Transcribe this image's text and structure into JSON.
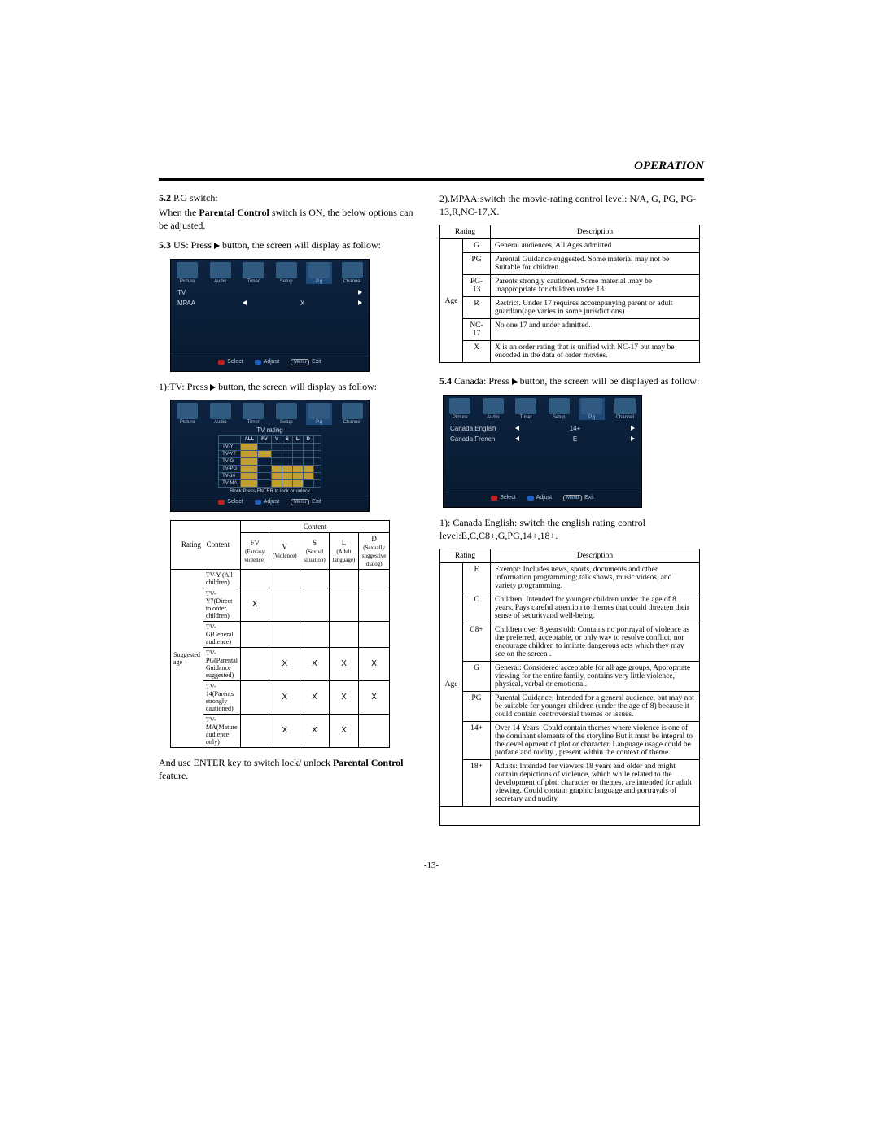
{
  "page": {
    "header": "OPERATION",
    "page_number": "-13-"
  },
  "left": {
    "s52_head": "5.2",
    "s52_label": "P.G  switch:",
    "s52_body1": "When  the ",
    "s52_body1b": "Parental Control",
    "s52_body1c": " switch is ON, the below options can  be adjusted.",
    "s53_head": "5.3",
    "s53_label": "US: Press",
    "s53_rest": "button, the screen will  display as follow:",
    "p1_intro": "1):TV: Press",
    "p1_rest": "button, the screen will  display as follow:",
    "after_table_a": "And use ENTER key to switch lock/ unlock ",
    "after_table_b": "Parental Control",
    "after_table_c": " feature.",
    "osd_tabs": [
      "Picture",
      "Audio",
      "Timer",
      "Setup",
      "P.g",
      "Channel"
    ],
    "osd1_rows": [
      {
        "label": "TV",
        "val": ""
      },
      {
        "label": "MPAA",
        "val": "X"
      }
    ],
    "osd_foot": {
      "select": "Select",
      "adjust": "Adjust",
      "menu": "Menu",
      "exit": "Exit"
    },
    "tvgrid": {
      "title": "TV rating",
      "cols": [
        "ALL",
        "FV",
        "V",
        "S",
        "L",
        "D"
      ],
      "rows": [
        "TV-Y",
        "TV-Y7",
        "TV-G",
        "TV-PG",
        "TV-14",
        "TV-MA"
      ],
      "locks": [
        [
          1,
          0,
          0,
          0,
          0,
          0
        ],
        [
          1,
          1,
          0,
          0,
          0,
          0
        ],
        [
          1,
          0,
          0,
          0,
          0,
          0
        ],
        [
          1,
          0,
          1,
          1,
          1,
          1
        ],
        [
          1,
          0,
          1,
          1,
          1,
          1
        ],
        [
          1,
          0,
          1,
          1,
          1,
          0
        ]
      ],
      "sub": "Block        Press ENTER to lock or unlock"
    },
    "content_table": {
      "h_group": "Content",
      "h_left": [
        "Rating",
        "Content"
      ],
      "h_cols": [
        {
          "k": "FV",
          "s": "(Fantasy violence)"
        },
        {
          "k": "V",
          "s": "(Violence)"
        },
        {
          "k": "S",
          "s": "(Sexual situation)"
        },
        {
          "k": "L",
          "s": "(Adult language)"
        },
        {
          "k": "D",
          "s": "(Sexually suggestive dialog)"
        }
      ],
      "side": "Suggested age",
      "rows": [
        {
          "r": "TV-Y (All children)",
          "x": [
            0,
            0,
            0,
            0,
            0
          ]
        },
        {
          "r": "TV-Y7(Direct to order children)",
          "x": [
            1,
            0,
            0,
            0,
            0
          ]
        },
        {
          "r": "TV-G(General audience)",
          "x": [
            0,
            0,
            0,
            0,
            0
          ]
        },
        {
          "r": "TV-PG(Parental Guidance suggested)",
          "x": [
            0,
            1,
            1,
            1,
            1
          ]
        },
        {
          "r": "TV-14(Parents strongly cautioned)",
          "x": [
            0,
            1,
            1,
            1,
            1
          ]
        },
        {
          "r": "TV-MA(Mature audience only)",
          "x": [
            0,
            1,
            1,
            1,
            0
          ]
        }
      ]
    }
  },
  "right": {
    "p2_intro": "2).MPAA:switch the movie-rating control level: N/A, G, PG, PG-13,R,NC-17,X.",
    "mpaa_table": {
      "h": [
        "Rating",
        "Description"
      ],
      "side": "Age",
      "rows": [
        {
          "r": "G",
          "d": "General audiences, All Ages admitted"
        },
        {
          "r": "PG",
          "d": "Parental Guidance suggested. Some material may not be Suitable for children."
        },
        {
          "r": "PG-13",
          "d": "Parents strongly cautioned. Some material .may be Inappropriate for children under 13."
        },
        {
          "r": "R",
          "d": "Restrict. Under 17 requires accompanying parent or adult guardian(age varies in some jurisdictions)"
        },
        {
          "r": "NC-17",
          "d": "No  one 17 and under admitted."
        },
        {
          "r": "X",
          "d": "X  is an order rating that is unified with NC-17 but may be encoded in the data of order movies."
        }
      ]
    },
    "s54_head": "5.4",
    "s54_label": "Canada: Press",
    "s54_rest": "button, the screen will be displayed as follow:",
    "osd3_rows": [
      {
        "label": "Canada  English",
        "val": "14+"
      },
      {
        "label": "Canada  French",
        "val": "E"
      }
    ],
    "p_ca": "1): Canada English: switch the english rating control level:E,C,C8+,G,PG,14+,18+.",
    "ca_table": {
      "h": [
        "Rating",
        "Description"
      ],
      "side": "Age",
      "rows": [
        {
          "r": "E",
          "d": "Exempt: Includes news, sports, documents and other information programming; talk shows, music videos, and variety programming."
        },
        {
          "r": "C",
          "d": "Children: Intended for younger children under the age of 8 years. Pays careful attention to themes that could threaten their sense of securityand well-being."
        },
        {
          "r": "C8+",
          "d": "Children over 8 years old: Contains no portrayal of violence as the preferred, acceptable, or only way to resolve conflict; nor encourage children to imitate dangerous acts which they may see on the screen ."
        },
        {
          "r": "G",
          "d": "General: Considered acceptable for all age groups, Appropriate viewing for the entire family, contains very little violence, physical, verbal or emotional."
        },
        {
          "r": "PG",
          "d": "Parental Guidance: Intended for a general audience, but may not be suitable for younger children (under the age of 8) because it could contain controversial themes or issues."
        },
        {
          "r": "14+",
          "d": "Over 14 Years: Could contain themes where violence is one of the dominant elements of the storyline But it must be integral to the devel opment of plot or character. Language usage could be profane and nudity , present within the context of theme."
        },
        {
          "r": "18+",
          "d": "Adults: Intended for viewers 18 years and older and might contain depictions of  violence, which while related to the development of plot,  character or themes, are intended for adult  viewing. Could contain graphic language and portrayals of secretary and nudity."
        }
      ]
    }
  },
  "colors": {
    "osd_bg": "#0d2340",
    "osd_border": "#3a5a7a",
    "osd_text": "#cfd8e6",
    "lock_bg": "#c0a030",
    "red": "#c02020",
    "blue": "#2060c0"
  }
}
